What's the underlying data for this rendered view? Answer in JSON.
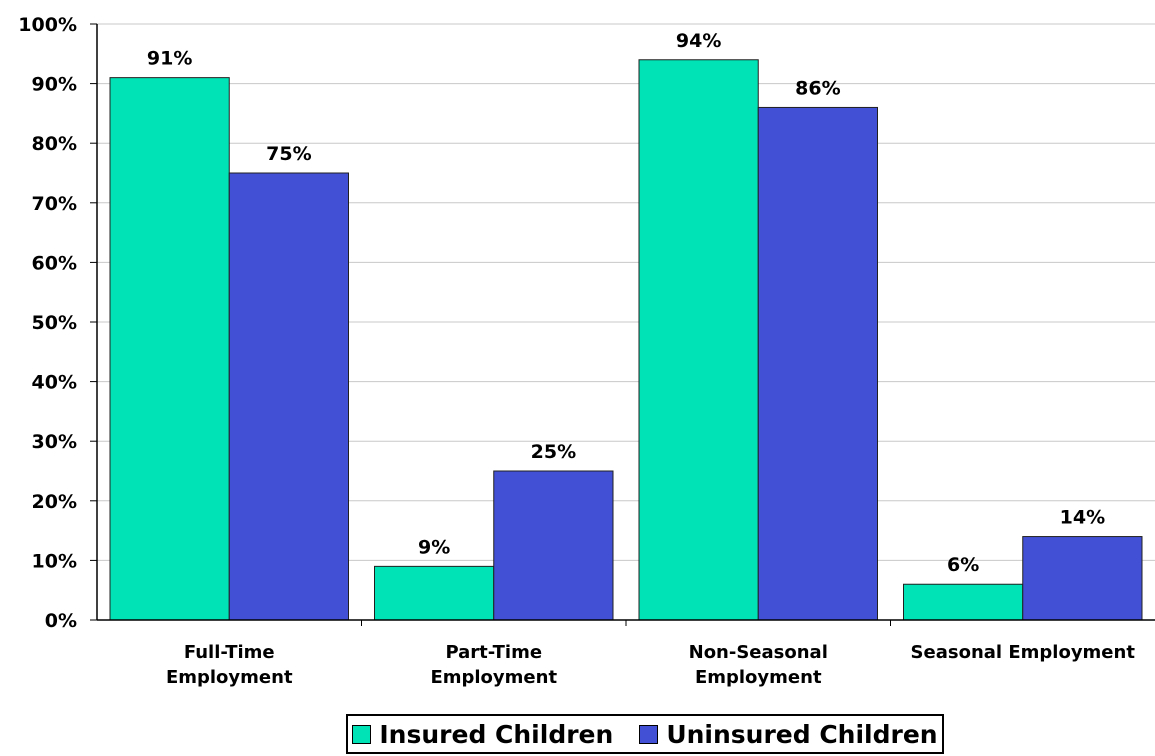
{
  "chart_data": {
    "type": "bar",
    "title": "",
    "xlabel": "",
    "ylabel": "",
    "ylim": [
      0,
      100
    ],
    "yticks": [
      "0%",
      "10%",
      "20%",
      "30%",
      "40%",
      "50%",
      "60%",
      "70%",
      "80%",
      "90%",
      "100%"
    ],
    "grid": true,
    "legend_position": "bottom",
    "categories": [
      [
        "Full-Time",
        "Employment"
      ],
      [
        "Part-Time",
        "Employment"
      ],
      [
        "Non-Seasonal",
        "Employment"
      ],
      [
        "Seasonal Employment"
      ]
    ],
    "series": [
      {
        "name": "Insured Children",
        "color": "#00E3B6",
        "values": [
          91,
          9,
          94,
          6
        ],
        "labels": [
          "91%",
          "9%",
          "94%",
          "6%"
        ]
      },
      {
        "name": "Uninsured Children",
        "color": "#4250D6",
        "values": [
          75,
          25,
          86,
          14
        ],
        "labels": [
          "75%",
          "25%",
          "86%",
          "14%"
        ]
      }
    ]
  }
}
